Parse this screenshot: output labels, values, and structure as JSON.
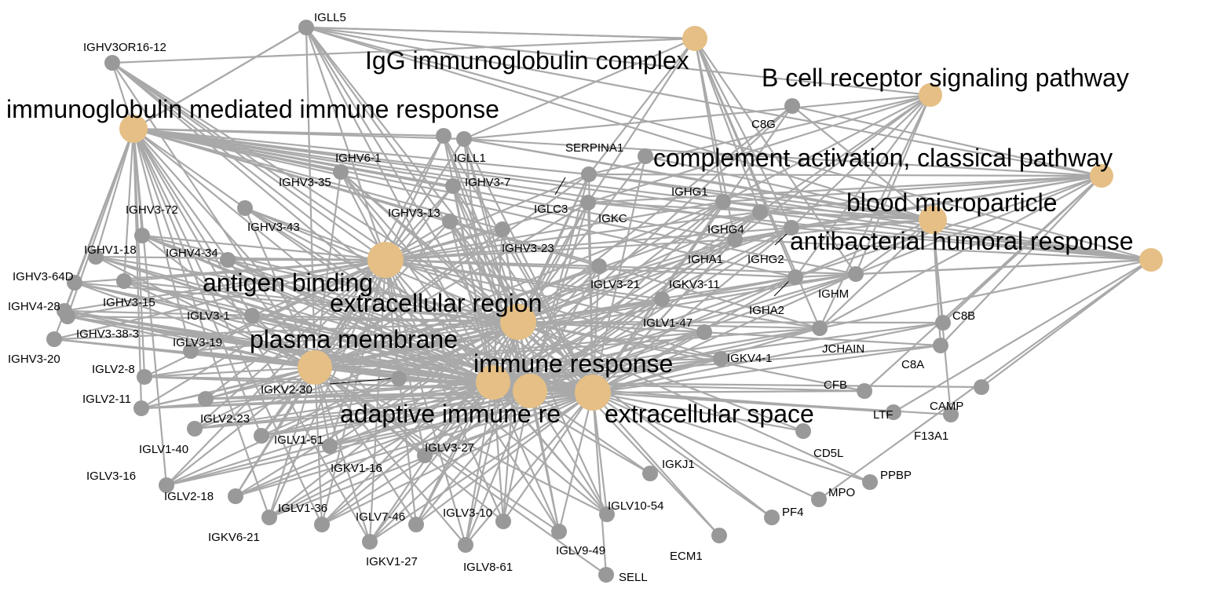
{
  "colors": {
    "edge": "#a9a9a9",
    "gene_node": "#999999",
    "term_node": "#e5bf85",
    "label": "#000000"
  },
  "terms": [
    {
      "id": "T1",
      "label": "IgG immunoglobulin complex"
    },
    {
      "id": "T2",
      "label": "B cell receptor signaling pathway"
    },
    {
      "id": "T3",
      "label": "immunoglobulin mediated immune response"
    },
    {
      "id": "T4",
      "label": "complement activation, classical pathway"
    },
    {
      "id": "T5",
      "label": "blood microparticle"
    },
    {
      "id": "T6",
      "label": "antibacterial humoral response"
    },
    {
      "id": "T7",
      "label": "antigen binding"
    },
    {
      "id": "T8",
      "label": "extracellular region"
    },
    {
      "id": "T9",
      "label": "plasma membrane"
    },
    {
      "id": "T10",
      "label": "immune response"
    },
    {
      "id": "T11",
      "label": "adaptive immune re"
    },
    {
      "id": "T12",
      "label": "extracellular space"
    }
  ],
  "genes": [
    {
      "id": "IGLL5",
      "label": "IGLL5"
    },
    {
      "id": "IGHV3OR16-12",
      "label": "IGHV3OR16-12"
    },
    {
      "id": "C8G",
      "label": "C8G"
    },
    {
      "id": "IGHV6-1",
      "label": "IGHV6-1"
    },
    {
      "id": "IGLL1",
      "label": "IGLL1"
    },
    {
      "id": "SERPINA1",
      "label": "SERPINA1"
    },
    {
      "id": "IGHV3-35",
      "label": "IGHV3-35"
    },
    {
      "id": "IGHV3-7",
      "label": "IGHV3-7"
    },
    {
      "id": "IGHG1",
      "label": "IGHG1"
    },
    {
      "id": "IGHV3-72",
      "label": "IGHV3-72"
    },
    {
      "id": "IGLC3",
      "label": "IGLC3"
    },
    {
      "id": "IGHV3-13",
      "label": "IGHV3-13"
    },
    {
      "id": "IGKC",
      "label": "IGKC"
    },
    {
      "id": "IGHV3-43",
      "label": "IGHV3-43"
    },
    {
      "id": "IGHG4",
      "label": "IGHG4"
    },
    {
      "id": "IGHV1-18",
      "label": "IGHV1-18"
    },
    {
      "id": "IGHV4-34",
      "label": "IGHV4-34"
    },
    {
      "id": "IGHV3-23",
      "label": "IGHV3-23"
    },
    {
      "id": "IGHA1",
      "label": "IGHA1"
    },
    {
      "id": "IGHG2",
      "label": "IGHG2"
    },
    {
      "id": "IGHV3-64D",
      "label": "IGHV3-64D"
    },
    {
      "id": "IGLV3-21",
      "label": "IGLV3-21"
    },
    {
      "id": "IGKV3-11",
      "label": "IGKV3-11"
    },
    {
      "id": "IGHV4-28",
      "label": "IGHV4-28"
    },
    {
      "id": "IGHV3-15",
      "label": "IGHV3-15"
    },
    {
      "id": "IGHM",
      "label": "IGHM"
    },
    {
      "id": "IGHA2",
      "label": "IGHA2"
    },
    {
      "id": "IGLV3-1",
      "label": "IGLV3-1"
    },
    {
      "id": "IGHV3-38-3",
      "label": "IGHV3-38-3"
    },
    {
      "id": "IGLV1-47",
      "label": "IGLV1-47"
    },
    {
      "id": "C8B",
      "label": "C8B"
    },
    {
      "id": "IGLV3-19",
      "label": "IGLV3-19"
    },
    {
      "id": "IGHV3-20",
      "label": "IGHV3-20"
    },
    {
      "id": "JCHAIN",
      "label": "JCHAIN"
    },
    {
      "id": "IGKV4-1",
      "label": "IGKV4-1"
    },
    {
      "id": "C8A",
      "label": "C8A"
    },
    {
      "id": "IGLV2-8",
      "label": "IGLV2-8"
    },
    {
      "id": "IGKV2-30",
      "label": "IGKV2-30"
    },
    {
      "id": "CFB",
      "label": "CFB"
    },
    {
      "id": "IGLV2-11",
      "label": "IGLV2-11"
    },
    {
      "id": "CAMP",
      "label": "CAMP"
    },
    {
      "id": "IGLV2-23",
      "label": "IGLV2-23"
    },
    {
      "id": "LTF",
      "label": "LTF"
    },
    {
      "id": "F13A1",
      "label": "F13A1"
    },
    {
      "id": "IGLV1-51",
      "label": "IGLV1-51"
    },
    {
      "id": "IGLV1-40",
      "label": "IGLV1-40"
    },
    {
      "id": "CD5L",
      "label": "CD5L"
    },
    {
      "id": "IGLV3-27",
      "label": "IGLV3-27"
    },
    {
      "id": "IGKV1-16",
      "label": "IGKV1-16"
    },
    {
      "id": "IGKJ1",
      "label": "IGKJ1"
    },
    {
      "id": "IGLV3-16",
      "label": "IGLV3-16"
    },
    {
      "id": "PPBP",
      "label": "PPBP"
    },
    {
      "id": "IGLV2-18",
      "label": "IGLV2-18"
    },
    {
      "id": "MPO",
      "label": "MPO"
    },
    {
      "id": "IGLV1-36",
      "label": "IGLV1-36"
    },
    {
      "id": "IGLV3-10",
      "label": "IGLV3-10"
    },
    {
      "id": "IGLV10-54",
      "label": "IGLV10-54"
    },
    {
      "id": "IGLV7-46",
      "label": "IGLV7-46"
    },
    {
      "id": "PF4",
      "label": "PF4"
    },
    {
      "id": "IGKV6-21",
      "label": "IGKV6-21"
    },
    {
      "id": "ECM1",
      "label": "ECM1"
    },
    {
      "id": "IGLV9-49",
      "label": "IGLV9-49"
    },
    {
      "id": "IGKV1-27",
      "label": "IGKV1-27"
    },
    {
      "id": "IGLV8-61",
      "label": "IGLV8-61"
    },
    {
      "id": "SELL",
      "label": "SELL"
    }
  ]
}
